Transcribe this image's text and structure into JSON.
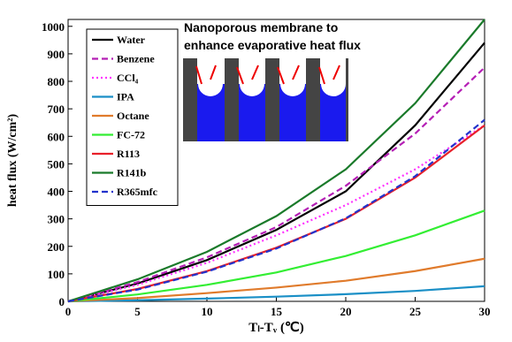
{
  "chart_data": {
    "type": "line",
    "x": [
      0,
      5,
      10,
      15,
      20,
      25,
      30
    ],
    "series": [
      {
        "name": "Water",
        "color": "#000000",
        "dash": "solid",
        "values": [
          0,
          65,
          150,
          260,
          400,
          640,
          940
        ]
      },
      {
        "name": "Benzene",
        "color": "#b51fb5",
        "dash": "dashed",
        "values": [
          0,
          70,
          160,
          270,
          420,
          610,
          850
        ]
      },
      {
        "name": "CCl₄",
        "color": "#ff33ff",
        "dash": "dotted",
        "values": [
          0,
          60,
          140,
          240,
          350,
          480,
          640
        ]
      },
      {
        "name": "IPA",
        "color": "#1a8fc6",
        "dash": "solid",
        "values": [
          0,
          4,
          10,
          17,
          26,
          38,
          55
        ]
      },
      {
        "name": "Octane",
        "color": "#e07b2c",
        "dash": "solid",
        "values": [
          0,
          12,
          30,
          50,
          75,
          110,
          155
        ]
      },
      {
        "name": "FC-72",
        "color": "#33ee33",
        "dash": "solid",
        "values": [
          0,
          25,
          60,
          105,
          165,
          240,
          330
        ]
      },
      {
        "name": "R113",
        "color": "#e8202a",
        "dash": "solid",
        "values": [
          0,
          45,
          110,
          195,
          300,
          450,
          640
        ]
      },
      {
        "name": "R141b",
        "color": "#1a7a2a",
        "dash": "solid",
        "values": [
          0,
          80,
          180,
          310,
          480,
          720,
          1025
        ]
      },
      {
        "name": "R365mfc",
        "color": "#2233cc",
        "dash": "dashed",
        "values": [
          0,
          43,
          108,
          192,
          302,
          455,
          660
        ]
      }
    ],
    "xlim": [
      0,
      30
    ],
    "xticks": [
      0,
      5,
      10,
      15,
      20,
      25,
      30
    ],
    "ylim": [
      0,
      1025
    ],
    "yticks": [
      0,
      100,
      200,
      300,
      400,
      500,
      600,
      700,
      800,
      900,
      1000
    ],
    "xlabel": "Tₗ-Tᵥ (℃)",
    "ylabel": "heat flux (W/cm²)",
    "annotation": [
      "Nanoporous membrane to",
      "enhance evaporative  heat flux"
    ],
    "legend": "upper left"
  }
}
